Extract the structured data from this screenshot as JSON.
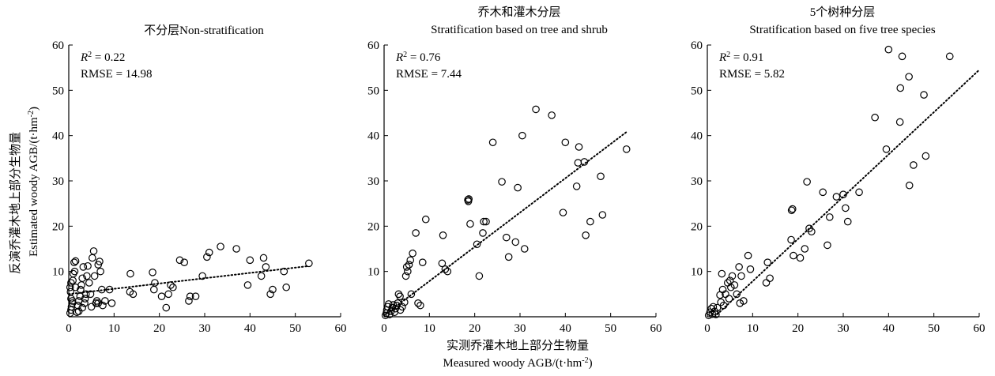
{
  "figure": {
    "ylabel_cn": "反演乔灌木地上部分生物量",
    "ylabel_en": "Estimated woody AGB/(t·hm",
    "ylabel_en_sup": "-2",
    "ylabel_en_end": ")",
    "xlabel_cn": "实测乔灌木地上部分生物量",
    "xlabel_en": "Measured woody AGB/(t·hm",
    "xlabel_en_sup": "-2",
    "xlabel_en_end": ")"
  },
  "chart_data": [
    {
      "type": "scatter",
      "title_cn": "不分层",
      "title_en": "Non-stratification",
      "title": "不分层Non-stratification",
      "r2_label": "R",
      "r2_value": "0.22",
      "rmse_label": "RMSE = 14.98",
      "xlim": [
        0,
        60
      ],
      "ylim": [
        0,
        60
      ],
      "xticks": [
        0,
        10,
        20,
        30,
        40,
        50,
        60
      ],
      "yticks": [
        10,
        20,
        30,
        40,
        50,
        60
      ],
      "trend": [
        [
          0,
          5.0
        ],
        [
          53,
          11.2
        ]
      ],
      "points": [
        [
          0.3,
          0.8
        ],
        [
          0.5,
          1.5
        ],
        [
          0.6,
          2.2
        ],
        [
          0.8,
          3.0
        ],
        [
          0.5,
          4.0
        ],
        [
          0.4,
          5.5
        ],
        [
          0.3,
          6.5
        ],
        [
          0.5,
          7.5
        ],
        [
          0.9,
          8.0
        ],
        [
          1.0,
          9.5
        ],
        [
          1.3,
          10.0
        ],
        [
          1.5,
          12.3
        ],
        [
          1.2,
          12.0
        ],
        [
          1.8,
          1.0
        ],
        [
          2.0,
          2.5
        ],
        [
          2.2,
          3.5
        ],
        [
          2.5,
          4.5
        ],
        [
          2.6,
          6.0
        ],
        [
          2.8,
          7.0
        ],
        [
          3.0,
          8.5
        ],
        [
          3.2,
          11.0
        ],
        [
          3.5,
          3.0
        ],
        [
          3.6,
          4.0
        ],
        [
          3.8,
          5.0
        ],
        [
          4.0,
          9.0
        ],
        [
          4.2,
          11.2
        ],
        [
          4.5,
          7.5
        ],
        [
          4.8,
          5.0
        ],
        [
          5.0,
          2.2
        ],
        [
          5.2,
          13.0
        ],
        [
          5.5,
          14.5
        ],
        [
          5.7,
          9.0
        ],
        [
          6.0,
          3.0
        ],
        [
          6.2,
          3.5
        ],
        [
          6.5,
          11.5
        ],
        [
          6.8,
          12.2
        ],
        [
          7.0,
          10.0
        ],
        [
          7.3,
          6.0
        ],
        [
          7.5,
          2.5
        ],
        [
          8.0,
          3.5
        ],
        [
          9.0,
          6.0
        ],
        [
          9.5,
          3.0
        ],
        [
          13.5,
          5.5
        ],
        [
          13.6,
          9.5
        ],
        [
          14.2,
          5.0
        ],
        [
          18.5,
          9.8
        ],
        [
          18.8,
          6.0
        ],
        [
          19.0,
          7.5
        ],
        [
          20.5,
          4.5
        ],
        [
          21.5,
          2.0
        ],
        [
          22.0,
          5.0
        ],
        [
          22.5,
          7.0
        ],
        [
          23.0,
          6.5
        ],
        [
          24.5,
          12.5
        ],
        [
          25.5,
          12.0
        ],
        [
          26.5,
          3.5
        ],
        [
          26.8,
          4.5
        ],
        [
          28.0,
          4.5
        ],
        [
          29.5,
          9.0
        ],
        [
          30.5,
          13.2
        ],
        [
          31.0,
          14.2
        ],
        [
          33.5,
          15.5
        ],
        [
          37.0,
          15.0
        ],
        [
          39.5,
          7.0
        ],
        [
          40.0,
          12.5
        ],
        [
          42.5,
          9.0
        ],
        [
          43.0,
          13.0
        ],
        [
          43.5,
          11.0
        ],
        [
          44.5,
          5.0
        ],
        [
          45.0,
          6.0
        ],
        [
          47.5,
          10.0
        ],
        [
          48.0,
          6.5
        ],
        [
          53.0,
          11.8
        ],
        [
          0.8,
          3.5
        ],
        [
          1.5,
          6.5
        ],
        [
          2.2,
          1.2
        ],
        [
          3.0,
          2.0
        ],
        [
          6.5,
          3.0
        ]
      ]
    },
    {
      "type": "scatter",
      "title_cn": "乔木和灌木分层",
      "title_en": "Stratification based on tree and shrub",
      "r2_label": "R",
      "r2_value": "0.76",
      "rmse_label": "RMSE = 7.44",
      "xlim": [
        0,
        60
      ],
      "ylim": [
        0,
        60
      ],
      "xticks": [
        0,
        10,
        20,
        30,
        40,
        50,
        60
      ],
      "yticks": [
        10,
        20,
        30,
        40,
        50,
        60
      ],
      "trend": [
        [
          0,
          0.3
        ],
        [
          53.5,
          40.8
        ]
      ],
      "points": [
        [
          0.3,
          0.3
        ],
        [
          0.5,
          0.8
        ],
        [
          0.6,
          1.5
        ],
        [
          0.8,
          2.2
        ],
        [
          1.0,
          2.8
        ],
        [
          1.2,
          0.5
        ],
        [
          1.5,
          1.2
        ],
        [
          1.8,
          2.0
        ],
        [
          2.0,
          2.6
        ],
        [
          2.3,
          1.0
        ],
        [
          2.5,
          1.8
        ],
        [
          2.8,
          2.5
        ],
        [
          3.0,
          3.0
        ],
        [
          3.2,
          5.0
        ],
        [
          3.5,
          4.5
        ],
        [
          3.6,
          1.5
        ],
        [
          4.0,
          2.2
        ],
        [
          4.5,
          3.2
        ],
        [
          4.8,
          9.0
        ],
        [
          5.0,
          11.0
        ],
        [
          5.2,
          10.0
        ],
        [
          5.5,
          11.5
        ],
        [
          5.8,
          12.5
        ],
        [
          6.0,
          5.0
        ],
        [
          6.3,
          14.0
        ],
        [
          7.0,
          18.5
        ],
        [
          7.5,
          3.0
        ],
        [
          8.0,
          2.5
        ],
        [
          8.5,
          12.0
        ],
        [
          9.2,
          21.5
        ],
        [
          12.8,
          11.8
        ],
        [
          13.0,
          18.0
        ],
        [
          13.5,
          10.5
        ],
        [
          14.0,
          10.0
        ],
        [
          18.5,
          25.8
        ],
        [
          18.6,
          25.5
        ],
        [
          18.7,
          26.0
        ],
        [
          19.0,
          20.5
        ],
        [
          20.5,
          16.0
        ],
        [
          21.0,
          9.0
        ],
        [
          21.8,
          18.5
        ],
        [
          22.0,
          21.0
        ],
        [
          22.5,
          21.0
        ],
        [
          24.0,
          38.5
        ],
        [
          26.0,
          29.8
        ],
        [
          27.0,
          17.5
        ],
        [
          27.5,
          13.2
        ],
        [
          29.0,
          16.5
        ],
        [
          29.5,
          28.5
        ],
        [
          30.5,
          40.0
        ],
        [
          31.0,
          15.0
        ],
        [
          33.5,
          45.8
        ],
        [
          37.0,
          44.5
        ],
        [
          39.5,
          23.0
        ],
        [
          40.0,
          38.5
        ],
        [
          42.5,
          28.8
        ],
        [
          42.8,
          34.0
        ],
        [
          43.0,
          37.5
        ],
        [
          44.2,
          34.2
        ],
        [
          44.5,
          18.0
        ],
        [
          45.5,
          21.0
        ],
        [
          47.8,
          31.0
        ],
        [
          48.2,
          22.5
        ],
        [
          53.5,
          37.0
        ]
      ]
    },
    {
      "type": "scatter",
      "title_cn": "5个树种分层",
      "title_en": "Stratification based on five tree species",
      "r2_label": "R",
      "r2_value": "0.91",
      "rmse_label": "RMSE = 5.82",
      "xlim": [
        0,
        60
      ],
      "ylim": [
        0,
        60
      ],
      "xticks": [
        0,
        10,
        20,
        30,
        40,
        50,
        60
      ],
      "yticks": [
        10,
        20,
        30,
        40,
        50,
        60
      ],
      "trend": [
        [
          0,
          -1.5
        ],
        [
          60,
          54.5
        ]
      ],
      "points": [
        [
          0.3,
          0.3
        ],
        [
          0.6,
          1.0
        ],
        [
          0.9,
          1.8
        ],
        [
          1.1,
          0.6
        ],
        [
          1.3,
          2.2
        ],
        [
          1.6,
          1.2
        ],
        [
          1.9,
          0.5
        ],
        [
          2.2,
          2.0
        ],
        [
          2.8,
          4.8
        ],
        [
          3.0,
          3.2
        ],
        [
          3.2,
          9.5
        ],
        [
          3.4,
          6.0
        ],
        [
          3.6,
          2.5
        ],
        [
          4.0,
          5.0
        ],
        [
          4.5,
          7.5
        ],
        [
          4.8,
          4.0
        ],
        [
          5.0,
          8.0
        ],
        [
          5.2,
          6.5
        ],
        [
          5.5,
          9.0
        ],
        [
          6.0,
          7.0
        ],
        [
          6.5,
          5.0
        ],
        [
          7.0,
          11.0
        ],
        [
          7.2,
          3.0
        ],
        [
          7.5,
          9.0
        ],
        [
          8.0,
          3.5
        ],
        [
          9.0,
          13.5
        ],
        [
          9.5,
          10.5
        ],
        [
          13.0,
          7.5
        ],
        [
          13.3,
          12.0
        ],
        [
          13.8,
          8.5
        ],
        [
          18.5,
          17.0
        ],
        [
          18.6,
          23.5
        ],
        [
          18.8,
          23.8
        ],
        [
          19.0,
          13.5
        ],
        [
          20.5,
          13.0
        ],
        [
          21.5,
          15.0
        ],
        [
          22.0,
          29.8
        ],
        [
          22.5,
          19.5
        ],
        [
          23.0,
          18.8
        ],
        [
          25.5,
          27.5
        ],
        [
          26.5,
          15.8
        ],
        [
          27.0,
          22.0
        ],
        [
          28.5,
          26.5
        ],
        [
          30.0,
          27.0
        ],
        [
          30.5,
          24.0
        ],
        [
          31.0,
          21.0
        ],
        [
          33.5,
          27.5
        ],
        [
          37.0,
          44.0
        ],
        [
          39.5,
          37.0
        ],
        [
          40.0,
          59.0
        ],
        [
          42.5,
          43.0
        ],
        [
          42.6,
          50.5
        ],
        [
          43.0,
          57.5
        ],
        [
          44.5,
          53.0
        ],
        [
          44.6,
          29.0
        ],
        [
          45.5,
          33.5
        ],
        [
          47.8,
          49.0
        ],
        [
          48.2,
          35.5
        ],
        [
          53.5,
          57.5
        ]
      ]
    }
  ]
}
